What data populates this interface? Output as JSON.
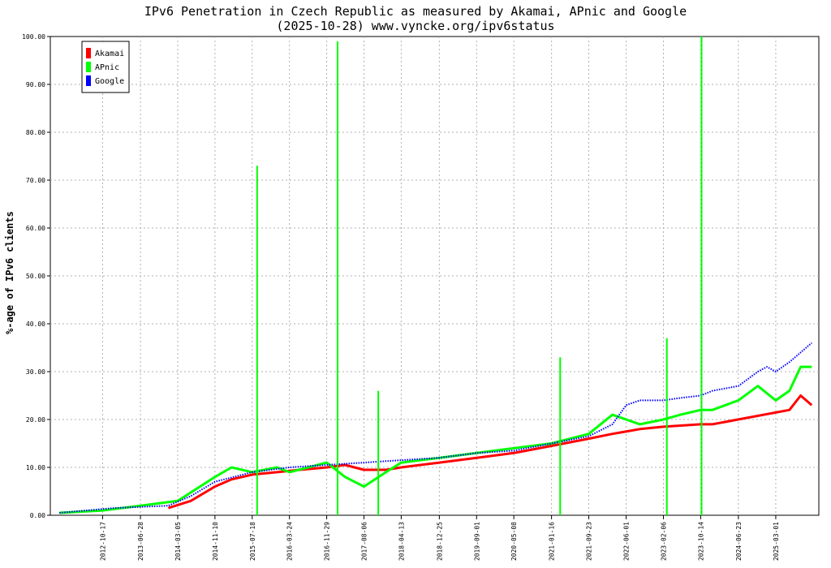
{
  "chart_data": {
    "type": "line",
    "title": "IPv6 Penetration in Czech Republic as measured by Akamai, APnic and Google",
    "subtitle": "(2025-10-28) www.vyncke.org/ipv6status",
    "ylabel": "%-age of IPv6 clients",
    "ylim": [
      0,
      100
    ],
    "yticks": [
      "0.00",
      "10.00",
      "20.00",
      "30.00",
      "40.00",
      "50.00",
      "60.00",
      "70.00",
      "80.00",
      "90.00",
      "100.00"
    ],
    "xlim": [
      "2011-11-01",
      "2025-12-15"
    ],
    "xticks": [
      "2012-10-17",
      "2013-06-28",
      "2014-03-05",
      "2014-11-10",
      "2015-07-18",
      "2016-03-24",
      "2016-11-29",
      "2017-08-06",
      "2018-04-13",
      "2018-12-25",
      "2019-09-01",
      "2020-05-08",
      "2021-01-16",
      "2021-09-23",
      "2022-06-01",
      "2023-02-06",
      "2023-10-14",
      "2024-06-23",
      "2025-03-01"
    ],
    "grid": true,
    "legend": "top-left",
    "series": [
      {
        "name": "Akamai",
        "color": "#ff0000",
        "points": [
          [
            "2014-01-01",
            1.5
          ],
          [
            "2014-06-01",
            3
          ],
          [
            "2014-11-10",
            6
          ],
          [
            "2015-03-01",
            7.5
          ],
          [
            "2015-07-18",
            8.5
          ],
          [
            "2016-01-01",
            9
          ],
          [
            "2016-06-01",
            9.5
          ],
          [
            "2016-11-29",
            10
          ],
          [
            "2017-04-01",
            10.5
          ],
          [
            "2017-08-06",
            9.5
          ],
          [
            "2018-01-01",
            9.5
          ],
          [
            "2018-04-13",
            10
          ],
          [
            "2018-12-25",
            11
          ],
          [
            "2019-09-01",
            12
          ],
          [
            "2020-05-08",
            13
          ],
          [
            "2021-01-16",
            14.5
          ],
          [
            "2021-09-23",
            16
          ],
          [
            "2022-03-01",
            17
          ],
          [
            "2022-09-01",
            18
          ],
          [
            "2023-02-06",
            18.5
          ],
          [
            "2023-10-14",
            19
          ],
          [
            "2024-01-01",
            19
          ],
          [
            "2025-06-01",
            22
          ],
          [
            "2025-08-15",
            25
          ],
          [
            "2025-10-28",
            23
          ]
        ]
      },
      {
        "name": "APnic",
        "color": "#00ff00",
        "points": [
          [
            "2012-01-01",
            0.5
          ],
          [
            "2012-10-17",
            1
          ],
          [
            "2013-06-28",
            2
          ],
          [
            "2014-03-05",
            3
          ],
          [
            "2014-11-10",
            8
          ],
          [
            "2015-03-01",
            10
          ],
          [
            "2015-07-18",
            9
          ],
          [
            "2016-01-01",
            10
          ],
          [
            "2016-03-24",
            9
          ],
          [
            "2016-11-29",
            11
          ],
          [
            "2017-04-01",
            8
          ],
          [
            "2017-08-06",
            6
          ],
          [
            "2018-01-01",
            9
          ],
          [
            "2018-04-13",
            11
          ],
          [
            "2018-12-25",
            12
          ],
          [
            "2019-09-01",
            13
          ],
          [
            "2020-05-08",
            14
          ],
          [
            "2021-01-16",
            15
          ],
          [
            "2021-09-23",
            17
          ],
          [
            "2022-03-01",
            21
          ],
          [
            "2022-06-01",
            20
          ],
          [
            "2022-09-01",
            19
          ],
          [
            "2023-02-06",
            20
          ],
          [
            "2023-06-01",
            21
          ],
          [
            "2023-10-14",
            22
          ],
          [
            "2024-01-01",
            22
          ],
          [
            "2024-06-23",
            24
          ],
          [
            "2024-11-01",
            27
          ],
          [
            "2025-03-01",
            24
          ],
          [
            "2025-06-01",
            26
          ],
          [
            "2025-08-15",
            31
          ],
          [
            "2025-10-28",
            31
          ]
        ]
      },
      {
        "name": "Google",
        "color": "#0000ff",
        "points": [
          [
            "2012-01-01",
            0.5
          ],
          [
            "2013-01-01",
            1.5
          ],
          [
            "2014-01-01",
            2
          ],
          [
            "2014-06-01",
            4
          ],
          [
            "2014-11-10",
            7
          ],
          [
            "2015-07-18",
            9
          ],
          [
            "2016-03-24",
            10
          ],
          [
            "2016-11-29",
            10.5
          ],
          [
            "2017-08-06",
            11
          ],
          [
            "2018-04-13",
            11.5
          ],
          [
            "2018-12-25",
            12
          ],
          [
            "2019-09-01",
            13
          ],
          [
            "2020-05-08",
            13.5
          ],
          [
            "2021-01-16",
            15
          ],
          [
            "2021-09-23",
            16.5
          ],
          [
            "2022-03-01",
            19
          ],
          [
            "2022-06-01",
            23
          ],
          [
            "2022-09-01",
            24
          ],
          [
            "2023-02-06",
            24
          ],
          [
            "2023-06-01",
            24.5
          ],
          [
            "2023-10-14",
            25
          ],
          [
            "2024-01-01",
            26
          ],
          [
            "2024-06-23",
            27
          ],
          [
            "2024-11-01",
            30
          ],
          [
            "2025-01-01",
            31
          ],
          [
            "2025-03-01",
            30
          ],
          [
            "2025-06-01",
            32
          ],
          [
            "2025-10-28",
            36
          ]
        ]
      }
    ],
    "spikes": [
      {
        "series": "APnic",
        "x": "2015-08-20",
        "y": 73
      },
      {
        "series": "APnic",
        "x": "2017-02-10",
        "y": 99
      },
      {
        "series": "APnic",
        "x": "2017-11-10",
        "y": 26
      },
      {
        "series": "APnic",
        "x": "2021-03-15",
        "y": 33
      },
      {
        "series": "APnic",
        "x": "2023-03-01",
        "y": 37
      },
      {
        "series": "APnic",
        "x": "2023-10-20",
        "y": 100
      },
      {
        "series": "APnic",
        "x": "2023-10-24",
        "y": 0
      }
    ]
  }
}
